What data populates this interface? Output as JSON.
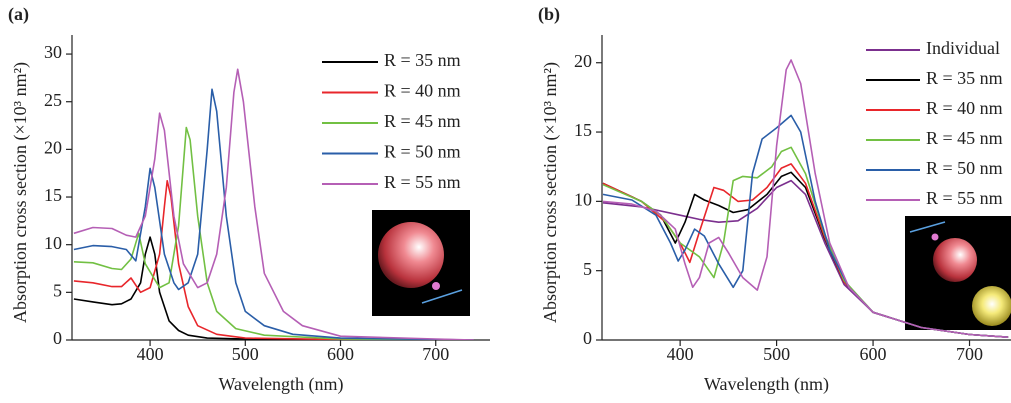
{
  "chart_data": [
    {
      "type": "line",
      "label": "(a)",
      "x_label": "Wavelength (nm)",
      "y_label": "Absorption cross section (×10³ nm²)",
      "xlim": [
        318,
        757
      ],
      "ylim": [
        0,
        32
      ],
      "xticks": [
        400,
        500,
        600,
        700
      ],
      "yticks": [
        0,
        5,
        10,
        15,
        20,
        25,
        30
      ],
      "legend": "upper right",
      "series": [
        {
          "name": "R = 35 nm",
          "color": "#000000",
          "x": [
            320,
            340,
            360,
            370,
            380,
            390,
            395,
            400,
            405,
            410,
            420,
            430,
            440,
            460,
            500,
            600,
            740
          ],
          "values": [
            4.3,
            4.0,
            3.7,
            3.8,
            4.3,
            6,
            9,
            10.8,
            9,
            5,
            2,
            1,
            0.5,
            0.2,
            0.1,
            0,
            0
          ]
        },
        {
          "name": "R = 40 nm",
          "color": "#e8262b",
          "x": [
            320,
            340,
            360,
            370,
            380,
            390,
            400,
            410,
            415,
            418,
            422,
            430,
            440,
            450,
            470,
            500,
            600,
            740
          ],
          "values": [
            6.2,
            6.0,
            5.6,
            5.6,
            6.5,
            5.0,
            5.5,
            9,
            14,
            16.7,
            15,
            8,
            3.5,
            1.5,
            0.6,
            0.2,
            0.05,
            0
          ]
        },
        {
          "name": "R = 45 nm",
          "color": "#72c043",
          "x": [
            320,
            340,
            360,
            370,
            380,
            388,
            395,
            410,
            420,
            430,
            438,
            442,
            450,
            460,
            470,
            490,
            520,
            600,
            740
          ],
          "values": [
            8.2,
            8.1,
            7.5,
            7.4,
            8.5,
            11.2,
            8,
            5.5,
            6,
            12,
            22.3,
            21,
            13,
            6,
            3,
            1.2,
            0.5,
            0.1,
            0
          ]
        },
        {
          "name": "R = 50 nm",
          "color": "#2a5ea8",
          "x": [
            320,
            340,
            360,
            375,
            385,
            395,
            400,
            405,
            415,
            425,
            430,
            440,
            450,
            460,
            465,
            470,
            480,
            490,
            500,
            520,
            550,
            600,
            740
          ],
          "values": [
            9.5,
            9.9,
            9.8,
            9.5,
            8.3,
            14,
            18,
            16,
            9,
            6,
            5.3,
            6,
            9,
            20,
            26.3,
            24,
            13,
            6,
            3,
            1.5,
            0.6,
            0.2,
            0
          ]
        },
        {
          "name": "R = 55 nm",
          "color": "#b55fb5",
          "x": [
            320,
            340,
            360,
            375,
            385,
            395,
            405,
            410,
            415,
            425,
            435,
            450,
            460,
            470,
            480,
            488,
            492,
            498,
            510,
            520,
            540,
            560,
            600,
            700,
            740
          ],
          "values": [
            11.2,
            11.8,
            11.7,
            11,
            10.8,
            13,
            19,
            23.8,
            22,
            13,
            8,
            5.5,
            6,
            9,
            16,
            26,
            28.4,
            25,
            14,
            7,
            3,
            1.5,
            0.4,
            0.1,
            0
          ]
        }
      ]
    },
    {
      "type": "line",
      "label": "(b)",
      "x_label": "Wavelength (nm)",
      "y_label": "Absorption cross section (×10³ nm²)",
      "xlim": [
        319,
        743
      ],
      "ylim": [
        0,
        22
      ],
      "xticks": [
        400,
        500,
        600,
        700
      ],
      "yticks": [
        0,
        5,
        10,
        15,
        20
      ],
      "legend": "upper right",
      "series": [
        {
          "name": "Individual",
          "color": "#7b2f8e",
          "x": [
            320,
            360,
            400,
            420,
            440,
            460,
            480,
            500,
            515,
            530,
            550,
            570,
            600,
            650,
            700,
            740
          ],
          "values": [
            9.9,
            9.6,
            9,
            8.7,
            8.5,
            8.6,
            9.5,
            11,
            11.5,
            10.5,
            7,
            4,
            2,
            0.9,
            0.4,
            0.2
          ]
        },
        {
          "name": "R = 35 nm",
          "color": "#000000",
          "x": [
            320,
            360,
            380,
            395,
            405,
            415,
            425,
            440,
            455,
            470,
            490,
            505,
            515,
            530,
            550,
            570,
            600,
            650,
            700,
            740
          ],
          "values": [
            11.3,
            10,
            9,
            7,
            8.5,
            10.5,
            10.1,
            9.7,
            9.2,
            9.4,
            10.5,
            11.8,
            12.1,
            11,
            7.3,
            4.2,
            2,
            0.9,
            0.4,
            0.2
          ]
        },
        {
          "name": "R = 40 nm",
          "color": "#e8262b",
          "x": [
            320,
            360,
            385,
            400,
            410,
            420,
            435,
            445,
            460,
            475,
            490,
            505,
            515,
            530,
            550,
            570,
            600,
            650,
            700,
            740
          ],
          "values": [
            11.3,
            10,
            8.5,
            7,
            5.6,
            7.8,
            11,
            10.8,
            10,
            10.1,
            11,
            12.4,
            12.7,
            11.3,
            7.4,
            4.2,
            2,
            0.9,
            0.4,
            0.2
          ]
        },
        {
          "name": "R = 45 nm",
          "color": "#72c043",
          "x": [
            320,
            360,
            380,
            400,
            420,
            435,
            445,
            455,
            465,
            480,
            495,
            505,
            515,
            530,
            550,
            570,
            600,
            650,
            700,
            740
          ],
          "values": [
            11.2,
            10,
            9,
            7,
            6,
            4.5,
            7,
            11.5,
            11.8,
            11.7,
            12.5,
            13.6,
            13.9,
            12,
            7.6,
            4.3,
            2,
            0.9,
            0.4,
            0.2
          ]
        },
        {
          "name": "R = 50 nm",
          "color": "#2a5ea8",
          "x": [
            320,
            350,
            375,
            390,
            398,
            405,
            415,
            425,
            440,
            455,
            465,
            475,
            485,
            500,
            515,
            525,
            540,
            555,
            575,
            600,
            650,
            700,
            740
          ],
          "values": [
            10.5,
            10.1,
            9,
            7,
            5.7,
            6.5,
            8,
            7.5,
            5.5,
            3.8,
            5,
            12,
            14.5,
            15.3,
            16.2,
            15,
            10,
            6.5,
            3.8,
            2,
            0.9,
            0.4,
            0.2
          ]
        },
        {
          "name": "R = 55 nm",
          "color": "#b55fb5",
          "x": [
            320,
            350,
            375,
            395,
            405,
            413,
            420,
            430,
            440,
            450,
            465,
            480,
            490,
            500,
            510,
            515,
            525,
            540,
            555,
            575,
            600,
            650,
            700,
            740
          ],
          "values": [
            10,
            9.8,
            9.3,
            8,
            5.5,
            3.8,
            4.5,
            7,
            7.4,
            6.3,
            4.5,
            3.6,
            6,
            14,
            19.5,
            20.2,
            18.5,
            12,
            7,
            3.8,
            2,
            0.9,
            0.4,
            0.2
          ]
        }
      ]
    }
  ]
}
